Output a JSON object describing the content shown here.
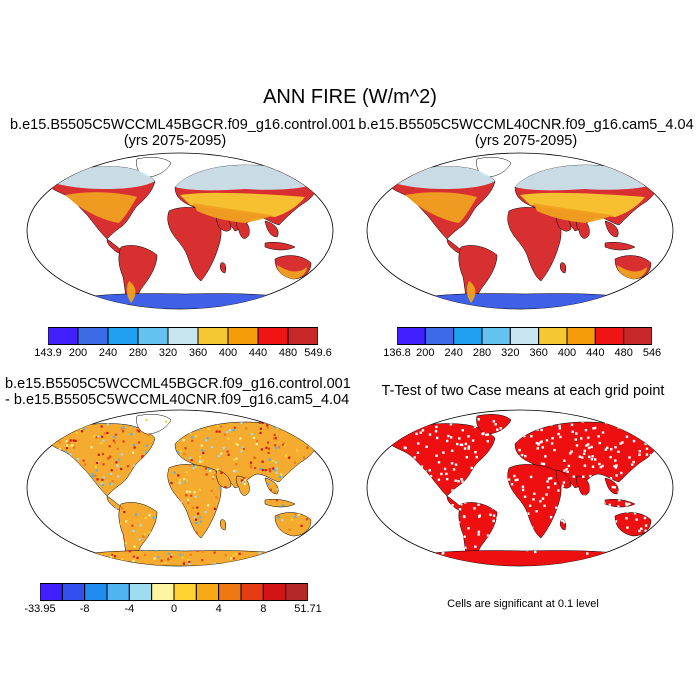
{
  "figure": {
    "title": "ANN FIRE (W/m^2)",
    "note": "Cells are significant at 0.1 level"
  },
  "panels": [
    {
      "id": "p1",
      "title_line1": "b.e15.B5505C5WCCML45BGCR.f09_g16.control.001",
      "title_line2": "(yrs 2075-2095)",
      "colorbar": {
        "colors": [
          "#4020ff",
          "#3d6be8",
          "#1ea0f0",
          "#64c3ee",
          "#c8e6f0",
          "#f5c832",
          "#f59c0a",
          "#f01414",
          "#c82828"
        ],
        "labels": [
          "143.9",
          "200",
          "240",
          "280",
          "320",
          "360",
          "400",
          "440",
          "480",
          "549.6"
        ]
      }
    },
    {
      "id": "p2",
      "title_line1": "b.e15.B5505C5WCCML40CNR.f09_g16.cam5_4.04",
      "title_line2": "(yrs 2075-2095)",
      "colorbar": {
        "colors": [
          "#4020ff",
          "#3d6be8",
          "#1ea0f0",
          "#64c3ee",
          "#c8e6f0",
          "#f5c832",
          "#f59c0a",
          "#f01414",
          "#c82828"
        ],
        "labels": [
          "136.8",
          "200",
          "240",
          "280",
          "320",
          "360",
          "400",
          "440",
          "480",
          "546"
        ]
      }
    },
    {
      "id": "p3",
      "title_line1": "b.e15.B5505C5WCCML45BGCR.f09_g16.control.001",
      "title_line2": "- b.e15.B5505C5WCCML40CNR.f09_g16.cam5_4.04",
      "colorbar": {
        "colors": [
          "#4020ff",
          "#3250f0",
          "#1e8cf0",
          "#50b4f0",
          "#a0dcf0",
          "#fff5a0",
          "#ffd232",
          "#f5aa14",
          "#f07814",
          "#e63c14",
          "#d21414",
          "#b42828"
        ],
        "labels": [
          "-33.95",
          "-8",
          "-4",
          "0",
          "4",
          "8",
          "51.71"
        ]
      }
    },
    {
      "id": "p4",
      "title_line1": "T-Test of two Case means at each grid point"
    }
  ],
  "map_colors": {
    "ocean": "#ffffff",
    "tropics": "#d83030",
    "subtropics": "#f0a020",
    "midlat": "#f8c830",
    "boreal": "#c8e6f0",
    "antarctica": "#4060e8",
    "diff_base": "#f5aa30",
    "significant": "#ee1010"
  }
}
